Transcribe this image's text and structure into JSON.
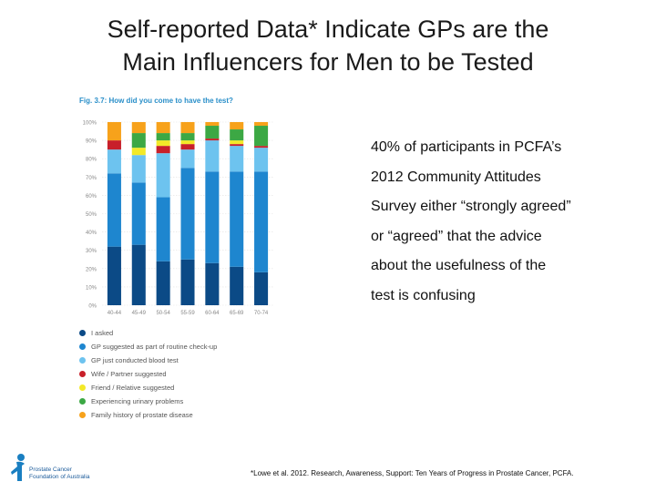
{
  "title": {
    "line1": "Self-reported Data* Indicate GPs are the",
    "line2": "Main Influencers for Men to be Tested"
  },
  "figure_caption": "Fig. 3.7: How did you come to have the test?",
  "body_text": [
    "40% of participants in PCFA’s",
    "2012 Community Attitudes",
    "Survey either “strongly agreed”",
    "or “agreed” that the advice",
    "about the usefulness of the",
    "test is confusing"
  ],
  "footnote": "*Lowe et al. 2012. Research, Awareness, Support: Ten Years of Progress in Prostate Cancer, PCFA.",
  "logo": {
    "line1": "Prostate Cancer",
    "line2": "Foundation of Australia"
  },
  "chart_data": {
    "type": "bar",
    "stacked": true,
    "categories": [
      "40-44",
      "45-49",
      "50-54",
      "55-59",
      "60-64",
      "65-69",
      "70-74"
    ],
    "yticks": [
      "0%",
      "10%",
      "20%",
      "30%",
      "40%",
      "50%",
      "60%",
      "70%",
      "80%",
      "90%",
      "100%"
    ],
    "ylim": [
      0,
      100
    ],
    "grid": true,
    "legend_position": "bottom",
    "series": [
      {
        "name": "I asked",
        "color": "#0b4a86",
        "values": [
          32,
          33,
          24,
          25,
          23,
          21,
          18
        ]
      },
      {
        "name": "GP suggested as part of routine check-up",
        "color": "#1e86cf",
        "values": [
          40,
          34,
          35,
          50,
          50,
          52,
          55
        ]
      },
      {
        "name": "GP just conducted blood test",
        "color": "#6dc3ef",
        "values": [
          13,
          15,
          24,
          10,
          17,
          14,
          13
        ]
      },
      {
        "name": "Wife / Partner suggested",
        "color": "#c8202a",
        "values": [
          5,
          0,
          4,
          3,
          1,
          1,
          1
        ]
      },
      {
        "name": "Friend / Relative suggested",
        "color": "#f3e928",
        "values": [
          0,
          4,
          3,
          2,
          0,
          2,
          0
        ]
      },
      {
        "name": "Experiencing urinary problems",
        "color": "#3ca844",
        "values": [
          0,
          8,
          4,
          4,
          7,
          6,
          11
        ]
      },
      {
        "name": "Family history of prostate disease",
        "color": "#f7a21b",
        "values": [
          10,
          6,
          6,
          6,
          2,
          4,
          2
        ]
      }
    ]
  }
}
